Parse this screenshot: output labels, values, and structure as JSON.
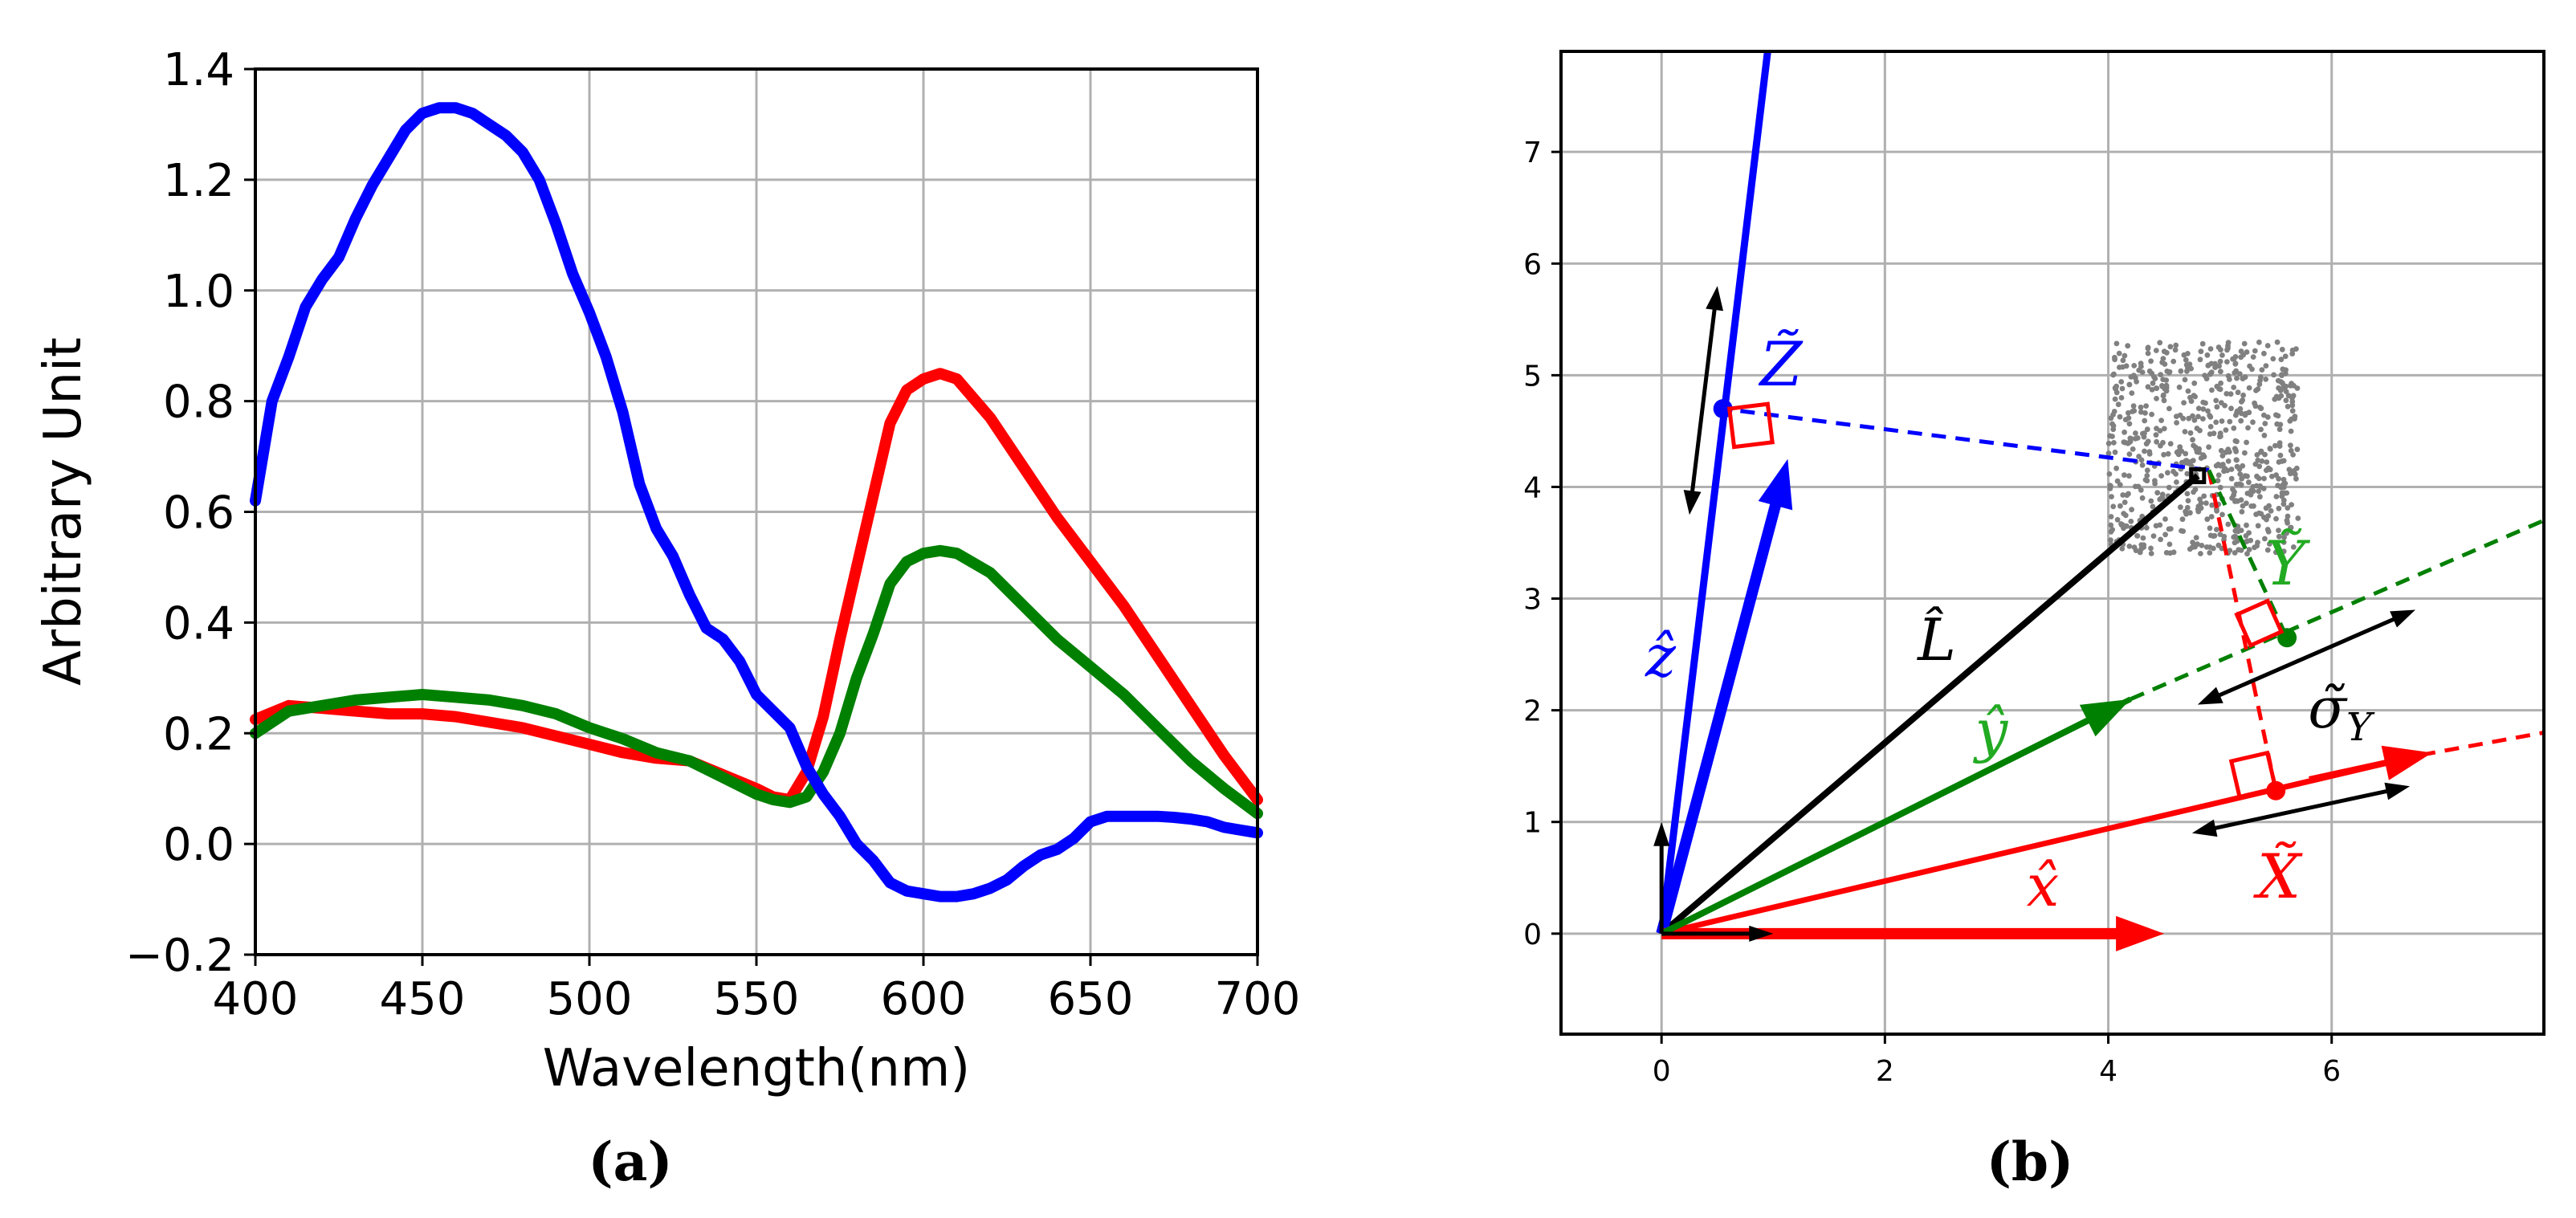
{
  "chart_data": [
    {
      "type": "line",
      "panel_label": "(a)",
      "xlabel": "Wavelength(nm)",
      "ylabel": "Arbitrary Unit",
      "xlim": [
        400,
        700
      ],
      "ylim": [
        -0.2,
        1.4
      ],
      "xticks": [
        400,
        450,
        500,
        550,
        600,
        650,
        700
      ],
      "yticks": [
        -0.2,
        0.0,
        0.2,
        0.4,
        0.6,
        0.8,
        1.0,
        1.2,
        1.4
      ],
      "ytick_labels": [
        "−0.2",
        "0.0",
        "0.2",
        "0.4",
        "0.6",
        "0.8",
        "1.0",
        "1.2",
        "1.4"
      ],
      "grid": true,
      "series": [
        {
          "name": "blue",
          "color": "#0000ff",
          "x": [
            400,
            405,
            410,
            415,
            420,
            425,
            430,
            435,
            440,
            445,
            450,
            455,
            460,
            465,
            470,
            475,
            480,
            485,
            490,
            495,
            500,
            505,
            510,
            515,
            520,
            525,
            530,
            535,
            540,
            545,
            550,
            555,
            560,
            565,
            570,
            575,
            580,
            585,
            590,
            595,
            600,
            605,
            610,
            615,
            620,
            625,
            630,
            635,
            640,
            645,
            650,
            655,
            660,
            665,
            670,
            675,
            680,
            685,
            690,
            695,
            700
          ],
          "y": [
            0.62,
            0.8,
            0.88,
            0.97,
            1.02,
            1.06,
            1.13,
            1.19,
            1.24,
            1.29,
            1.32,
            1.33,
            1.33,
            1.32,
            1.3,
            1.28,
            1.25,
            1.2,
            1.12,
            1.03,
            0.96,
            0.88,
            0.78,
            0.65,
            0.57,
            0.52,
            0.45,
            0.39,
            0.37,
            0.33,
            0.27,
            0.24,
            0.21,
            0.14,
            0.09,
            0.05,
            0.0,
            -0.03,
            -0.07,
            -0.085,
            -0.09,
            -0.095,
            -0.095,
            -0.09,
            -0.08,
            -0.065,
            -0.04,
            -0.02,
            -0.01,
            0.01,
            0.04,
            0.05,
            0.05,
            0.05,
            0.05,
            0.048,
            0.045,
            0.04,
            0.03,
            0.025,
            0.02
          ]
        },
        {
          "name": "red",
          "color": "#ff0000",
          "x": [
            400,
            410,
            420,
            430,
            440,
            450,
            460,
            470,
            480,
            490,
            500,
            510,
            520,
            530,
            540,
            550,
            555,
            560,
            565,
            570,
            575,
            580,
            585,
            590,
            595,
            600,
            605,
            610,
            620,
            630,
            640,
            650,
            660,
            670,
            680,
            690,
            700
          ],
          "y": [
            0.225,
            0.25,
            0.245,
            0.24,
            0.235,
            0.235,
            0.23,
            0.22,
            0.21,
            0.195,
            0.18,
            0.165,
            0.155,
            0.15,
            0.125,
            0.1,
            0.085,
            0.08,
            0.13,
            0.23,
            0.37,
            0.5,
            0.63,
            0.76,
            0.82,
            0.84,
            0.85,
            0.84,
            0.77,
            0.68,
            0.59,
            0.51,
            0.43,
            0.34,
            0.25,
            0.16,
            0.08
          ]
        },
        {
          "name": "green",
          "color": "#008000",
          "x": [
            400,
            410,
            420,
            430,
            440,
            450,
            460,
            470,
            480,
            490,
            500,
            510,
            520,
            530,
            540,
            550,
            555,
            560,
            565,
            570,
            575,
            580,
            585,
            590,
            595,
            600,
            605,
            610,
            620,
            630,
            640,
            650,
            660,
            670,
            680,
            690,
            700
          ],
          "y": [
            0.2,
            0.24,
            0.25,
            0.26,
            0.265,
            0.27,
            0.265,
            0.26,
            0.25,
            0.235,
            0.21,
            0.19,
            0.165,
            0.15,
            0.12,
            0.09,
            0.08,
            0.075,
            0.085,
            0.13,
            0.2,
            0.3,
            0.38,
            0.47,
            0.51,
            0.525,
            0.53,
            0.525,
            0.49,
            0.43,
            0.37,
            0.32,
            0.27,
            0.21,
            0.15,
            0.1,
            0.055
          ]
        }
      ]
    },
    {
      "type": "diagram-vectors",
      "panel_label": "(b)",
      "xlim": [
        -0.9,
        7.9
      ],
      "ylim": [
        -0.9,
        7.9
      ],
      "xticks": [
        0,
        2,
        4,
        6
      ],
      "yticks": [
        0,
        1,
        2,
        3,
        4,
        5,
        6,
        7
      ],
      "grid": true,
      "labels": {
        "z_hat": "ẑ",
        "y_hat": "ŷ",
        "x_hat": "x̂",
        "L_hat": "L̂",
        "Z_tilde": "Z̃",
        "Y_tilde": "Ỹ",
        "X_tilde": "X̃",
        "sigma_Y": "σ̃",
        "sigma_sub": "Y"
      }
    }
  ],
  "colors": {
    "blue": "#0000ff",
    "red": "#ff0000",
    "green": "#008000",
    "cloud": "#808080",
    "green_label": "#22aa22"
  }
}
